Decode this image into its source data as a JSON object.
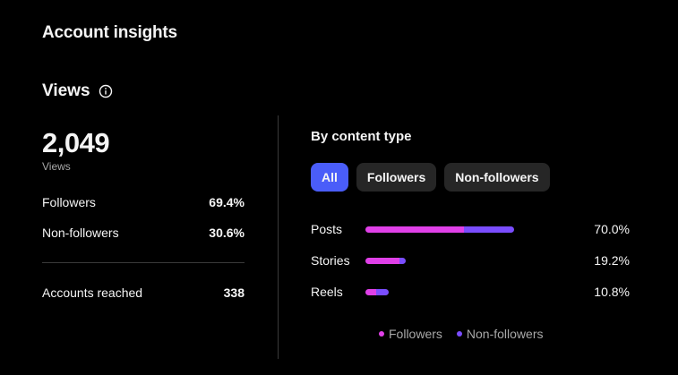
{
  "page": {
    "title": "Account insights"
  },
  "views": {
    "title": "Views",
    "icon": "info-icon",
    "total": "2,049",
    "total_label": "Views",
    "stats": [
      {
        "label": "Followers",
        "value": "69.4%"
      },
      {
        "label": "Non-followers",
        "value": "30.6%"
      }
    ],
    "reached": {
      "label": "Accounts reached",
      "value": "338"
    }
  },
  "content_type": {
    "title": "By content type",
    "tabs": [
      {
        "label": "All",
        "active": true
      },
      {
        "label": "Followers",
        "active": false
      },
      {
        "label": "Non-followers",
        "active": false
      }
    ],
    "rows": [
      {
        "label": "Posts",
        "percent_label": "70.0%",
        "total": 70.0,
        "followers_share": 0.66
      },
      {
        "label": "Stories",
        "percent_label": "19.2%",
        "total": 19.2,
        "followers_share": 0.85
      },
      {
        "label": "Reels",
        "percent_label": "10.8%",
        "total": 10.8,
        "followers_share": 0.45
      }
    ],
    "legend": [
      {
        "label": "Followers",
        "color": "#e040e8"
      },
      {
        "label": "Non-followers",
        "color": "#7a4dff"
      }
    ]
  },
  "colors": {
    "background": "#000000",
    "accent": "#4a5df9",
    "followers": "#e040e8",
    "non_followers": "#7a4dff"
  }
}
